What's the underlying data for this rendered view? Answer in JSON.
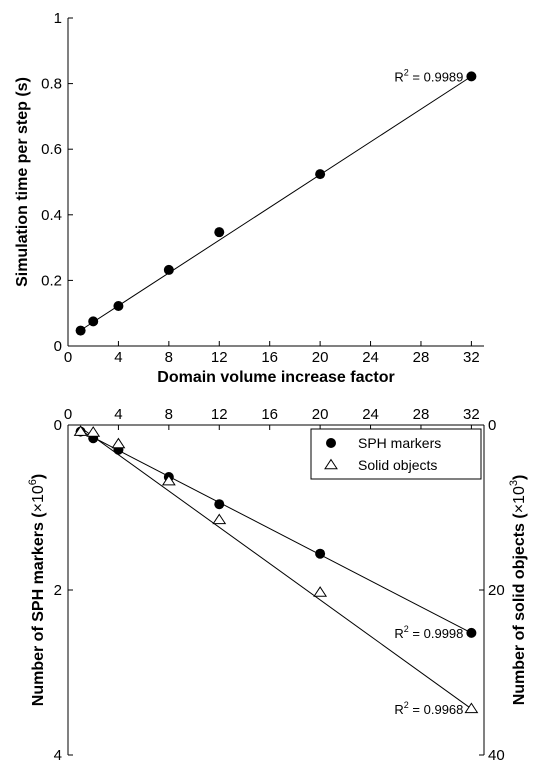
{
  "chart_data": [
    {
      "type": "scatter",
      "title": "",
      "xlabel": "Domain volume increase factor",
      "ylabel": "Simulation time per step (s)",
      "xlim": [
        0,
        33
      ],
      "ylim": [
        0,
        1
      ],
      "xticks": [
        0,
        4,
        8,
        12,
        16,
        20,
        24,
        28,
        32
      ],
      "yticks": [
        0,
        0.2,
        0.4,
        0.6,
        0.8,
        1
      ],
      "ytick_labels": [
        "0",
        "0.2",
        "0.4",
        "0.6",
        "0.8",
        "1"
      ],
      "grid": false,
      "series": [
        {
          "marker": "filled-circle",
          "x": [
            1,
            2,
            4,
            8,
            12,
            20,
            32
          ],
          "y": [
            0.047,
            0.075,
            0.122,
            0.232,
            0.347,
            0.524,
            0.822
          ],
          "fit": {
            "x0": 1,
            "y0": 0.048,
            "x1": 32,
            "y1": 0.822
          }
        }
      ],
      "annotations": [
        {
          "text_prefix": "R",
          "sup": "2",
          "text_suffix": " = 0.9989",
          "at_x": 32,
          "at_y": 0.822
        }
      ]
    },
    {
      "type": "scatter",
      "title": "",
      "xlabel": "",
      "ylabel": "Number of SPH markers (×10⁶)",
      "ylabel_prefix": "Number of SPH markers (",
      "ylabel_mid": "×10",
      "ylabel_sup": "6",
      "ylabel_suffix": ")",
      "y2label_prefix": "Number of solid objects (",
      "y2label_mid": "×10",
      "y2label_sup": "3",
      "y2label_suffix": ")",
      "xlim": [
        0,
        33
      ],
      "ylim": [
        0,
        4
      ],
      "y2lim": [
        0,
        40
      ],
      "y_inverted": true,
      "x_axis_position": "top",
      "xticks": [
        0,
        4,
        8,
        12,
        16,
        20,
        24,
        28,
        32
      ],
      "yticks": [
        0,
        2,
        4
      ],
      "y2ticks": [
        0,
        20,
        40
      ],
      "grid": false,
      "legend_position": "top-right",
      "series": [
        {
          "name": "SPH markers",
          "marker": "filled-circle",
          "axis": "left",
          "x": [
            1,
            2,
            4,
            8,
            12,
            20,
            32
          ],
          "y": [
            0.08,
            0.16,
            0.3,
            0.63,
            0.96,
            1.56,
            2.52
          ],
          "fit": {
            "x0": 1,
            "y0": 0.07,
            "x1": 32,
            "y1": 2.52
          }
        },
        {
          "name": "Solid objects",
          "marker": "open-triangle",
          "axis": "right",
          "x": [
            1,
            2,
            4,
            8,
            12,
            20,
            32
          ],
          "y": [
            0.8,
            0.9,
            2.3,
            6.8,
            11.5,
            20.3,
            34.4
          ],
          "fit": {
            "x0": 1,
            "y0": 0.3,
            "x1": 32,
            "y1": 34.4
          }
        }
      ],
      "annotations": [
        {
          "text_prefix": "R",
          "sup": "2",
          "text_suffix": " = 0.9998",
          "at_x": 32,
          "at_y": 2.52
        },
        {
          "text_prefix": "R",
          "sup": "2",
          "text_suffix": " = 0.9968",
          "at_x": 32,
          "at_y": 3.44
        }
      ]
    }
  ]
}
